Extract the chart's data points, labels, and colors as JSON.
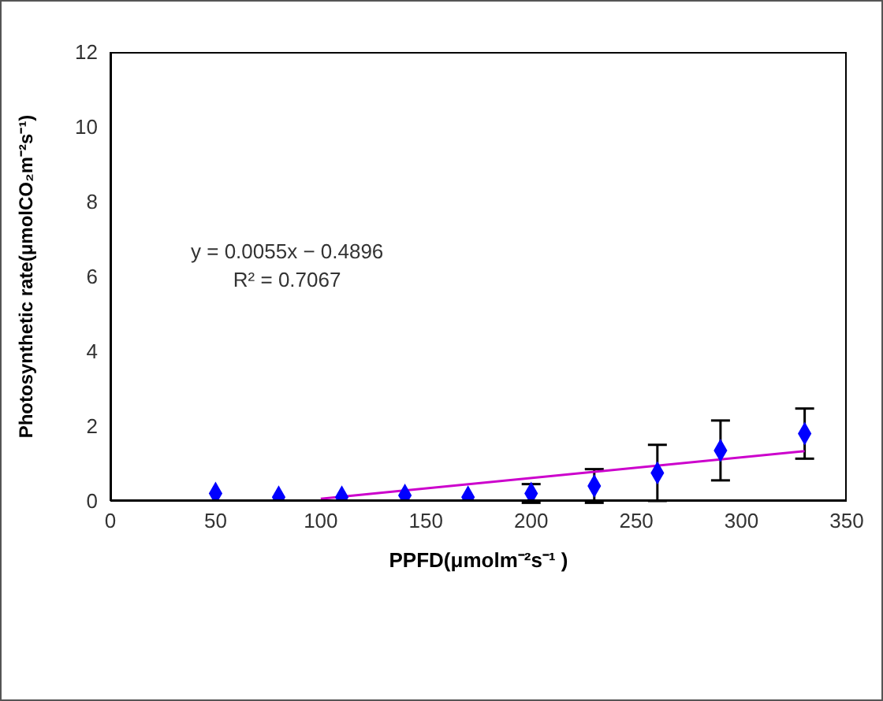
{
  "chart_data": {
    "type": "scatter",
    "xlabel": "PPFD(μmolm⁻²s⁻¹ )",
    "ylabel": "Photosynthetic rate(μmolCO₂m⁻²s⁻¹)",
    "xlim": [
      0,
      350
    ],
    "xticks": [
      0,
      50,
      100,
      150,
      200,
      250,
      300,
      350
    ],
    "ylim": [
      0,
      12
    ],
    "yticks": [
      0,
      2,
      4,
      6,
      8,
      10,
      12
    ],
    "grid": false,
    "legend": false,
    "annotations": [
      "y = 0.0055x − 0.4896",
      "R² = 0.7067"
    ],
    "series": [
      {
        "color": "#0000ff",
        "marker": "diamond",
        "x": [
          50,
          80,
          110,
          140,
          170,
          200,
          230,
          260,
          290,
          330
        ],
        "values": [
          0.2,
          0.1,
          0.1,
          0.15,
          0.1,
          0.2,
          0.4,
          0.75,
          1.35,
          1.8
        ],
        "errors": [
          null,
          null,
          null,
          null,
          null,
          0.25,
          0.45,
          0.75,
          0.8,
          0.67
        ]
      },
      {
        "type": "line",
        "color": "#cc00cc",
        "marker": "none",
        "x": [
          100,
          330
        ],
        "values": [
          0.06,
          1.33
        ]
      }
    ]
  }
}
